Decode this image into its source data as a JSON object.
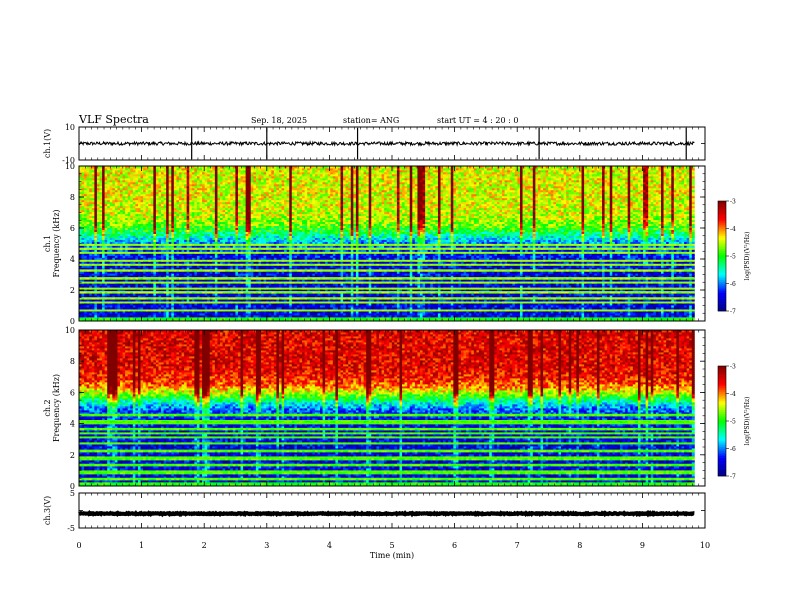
{
  "header": {
    "title": "VLF Spectra",
    "date": "Sep. 18, 2025",
    "station": "station= ANG",
    "start": "start UT =  4 : 20 : 0"
  },
  "chart_data": {
    "type": "heatmap",
    "x_label": "Time (min)",
    "x_range": [
      0,
      10
    ],
    "x_ticks": [
      "0",
      "1",
      "2",
      "3",
      "4",
      "5",
      "6",
      "7",
      "8",
      "9",
      "10"
    ],
    "data_end_min": 9.83,
    "panels": [
      {
        "id": "ch1-waveform",
        "type": "line",
        "ylabel": "ch.1(V)",
        "ylim": [
          -10,
          10
        ],
        "y_ticks": [
          "10",
          "-10"
        ],
        "baseline": 0,
        "noise_amplitude": 1,
        "spike_times_min": [
          1.8,
          3.0,
          4.45,
          7.35,
          9.7
        ]
      },
      {
        "id": "ch1-spectrogram",
        "type": "heatmap",
        "ylabel": "Frequency (kHz)",
        "channel_label": "ch.1",
        "ylim": [
          0,
          10
        ],
        "y_ticks": [
          "0",
          "2",
          "4",
          "6",
          "8",
          "10"
        ],
        "colorbar": {
          "label": "log(PSD)(V²/Hz)",
          "range": [
            -7,
            -3
          ],
          "ticks": [
            "-3",
            "-4",
            "-5",
            "-6",
            "-7"
          ]
        },
        "background_log_psd_high_freq": -4.4,
        "background_log_psd_low_freq": -6.5,
        "transition_freq_khz": 5.5,
        "line_frequencies_khz": [
          0.7,
          1.2,
          1.5,
          1.9,
          2.1,
          2.5,
          2.8,
          3.3,
          3.6,
          3.9,
          4.4,
          4.7,
          4.9
        ],
        "line_log_psd": -4.6
      },
      {
        "id": "ch2-spectrogram",
        "type": "heatmap",
        "ylabel": "Frequency (kHz)",
        "channel_label": "ch.2",
        "ylim": [
          0,
          10
        ],
        "y_ticks": [
          "0",
          "2",
          "4",
          "6",
          "8",
          "10"
        ],
        "colorbar": {
          "label": "log(PSD)(V²/Hz)",
          "range": [
            -7,
            -3
          ],
          "ticks": [
            "-3",
            "-4",
            "-5",
            "-6",
            "-7"
          ]
        },
        "background_log_psd_high_freq": -3.5,
        "background_log_psd_low_freq": -6.5,
        "transition_freq_khz": 5.7,
        "line_frequencies_khz": [
          0.5,
          0.9,
          1.4,
          1.8,
          2.3,
          2.7,
          3.1,
          3.4,
          3.7,
          4.0,
          4.2,
          4.6
        ],
        "line_log_psd": -4.8
      },
      {
        "id": "ch3-waveform",
        "type": "line",
        "ylabel": "ch.3(V)",
        "ylim": [
          -5,
          5
        ],
        "y_ticks": [
          "5",
          "-5"
        ],
        "baseline": -0.9,
        "noise_amplitude": 0.15,
        "spike_times_min": []
      }
    ],
    "colors": {
      "colormap": [
        "#000080",
        "#0000ff",
        "#00ffff",
        "#00ff00",
        "#ffff00",
        "#ff0000",
        "#800000"
      ],
      "axis": "#000000",
      "trace": "#000000"
    }
  }
}
